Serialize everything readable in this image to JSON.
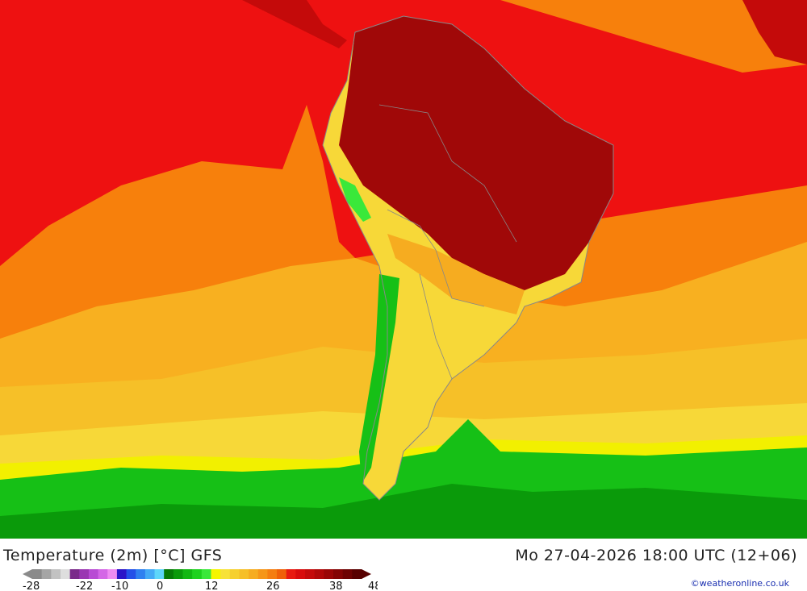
{
  "map": {
    "title": "Temperature (2m) [°C] GFS",
    "datetime": "Mo 27-04-2026 18:00 UTC (12+06)",
    "credit": "©weatheronline.co.uk",
    "legend": {
      "ticks": [
        "-28",
        "-22",
        "-10",
        "0",
        "12",
        "26",
        "38",
        "48"
      ],
      "colors": [
        "#8a8a8a",
        "#a5a5a5",
        "#c2c2c2",
        "#dedede",
        "#7a2a8a",
        "#9a36b2",
        "#b84bd4",
        "#d466e6",
        "#ef8bf2",
        "#2b14c8",
        "#2450e8",
        "#2f80f0",
        "#44aaf6",
        "#5ed6fa",
        "#067a06",
        "#0a9a0a",
        "#12b812",
        "#1ed21e",
        "#3ae83a",
        "#f5f500",
        "#f7e238",
        "#f6d02e",
        "#f6bf28",
        "#f6ac20",
        "#f69618",
        "#f57e10",
        "#f06008",
        "#e81a10",
        "#d80c0c",
        "#c40a0a",
        "#b00808",
        "#9a0606",
        "#840404",
        "#6e0202",
        "#580000"
      ]
    },
    "colors": {
      "hot": "#ee1111",
      "very_hot": "#a00808",
      "warm": "#f7800c",
      "mild": "#f8b020",
      "cool": "#f7d838",
      "yellow": "#f2f000",
      "green": "#16c016",
      "dark_green": "#0a8c0a",
      "border": "#888888"
    }
  }
}
